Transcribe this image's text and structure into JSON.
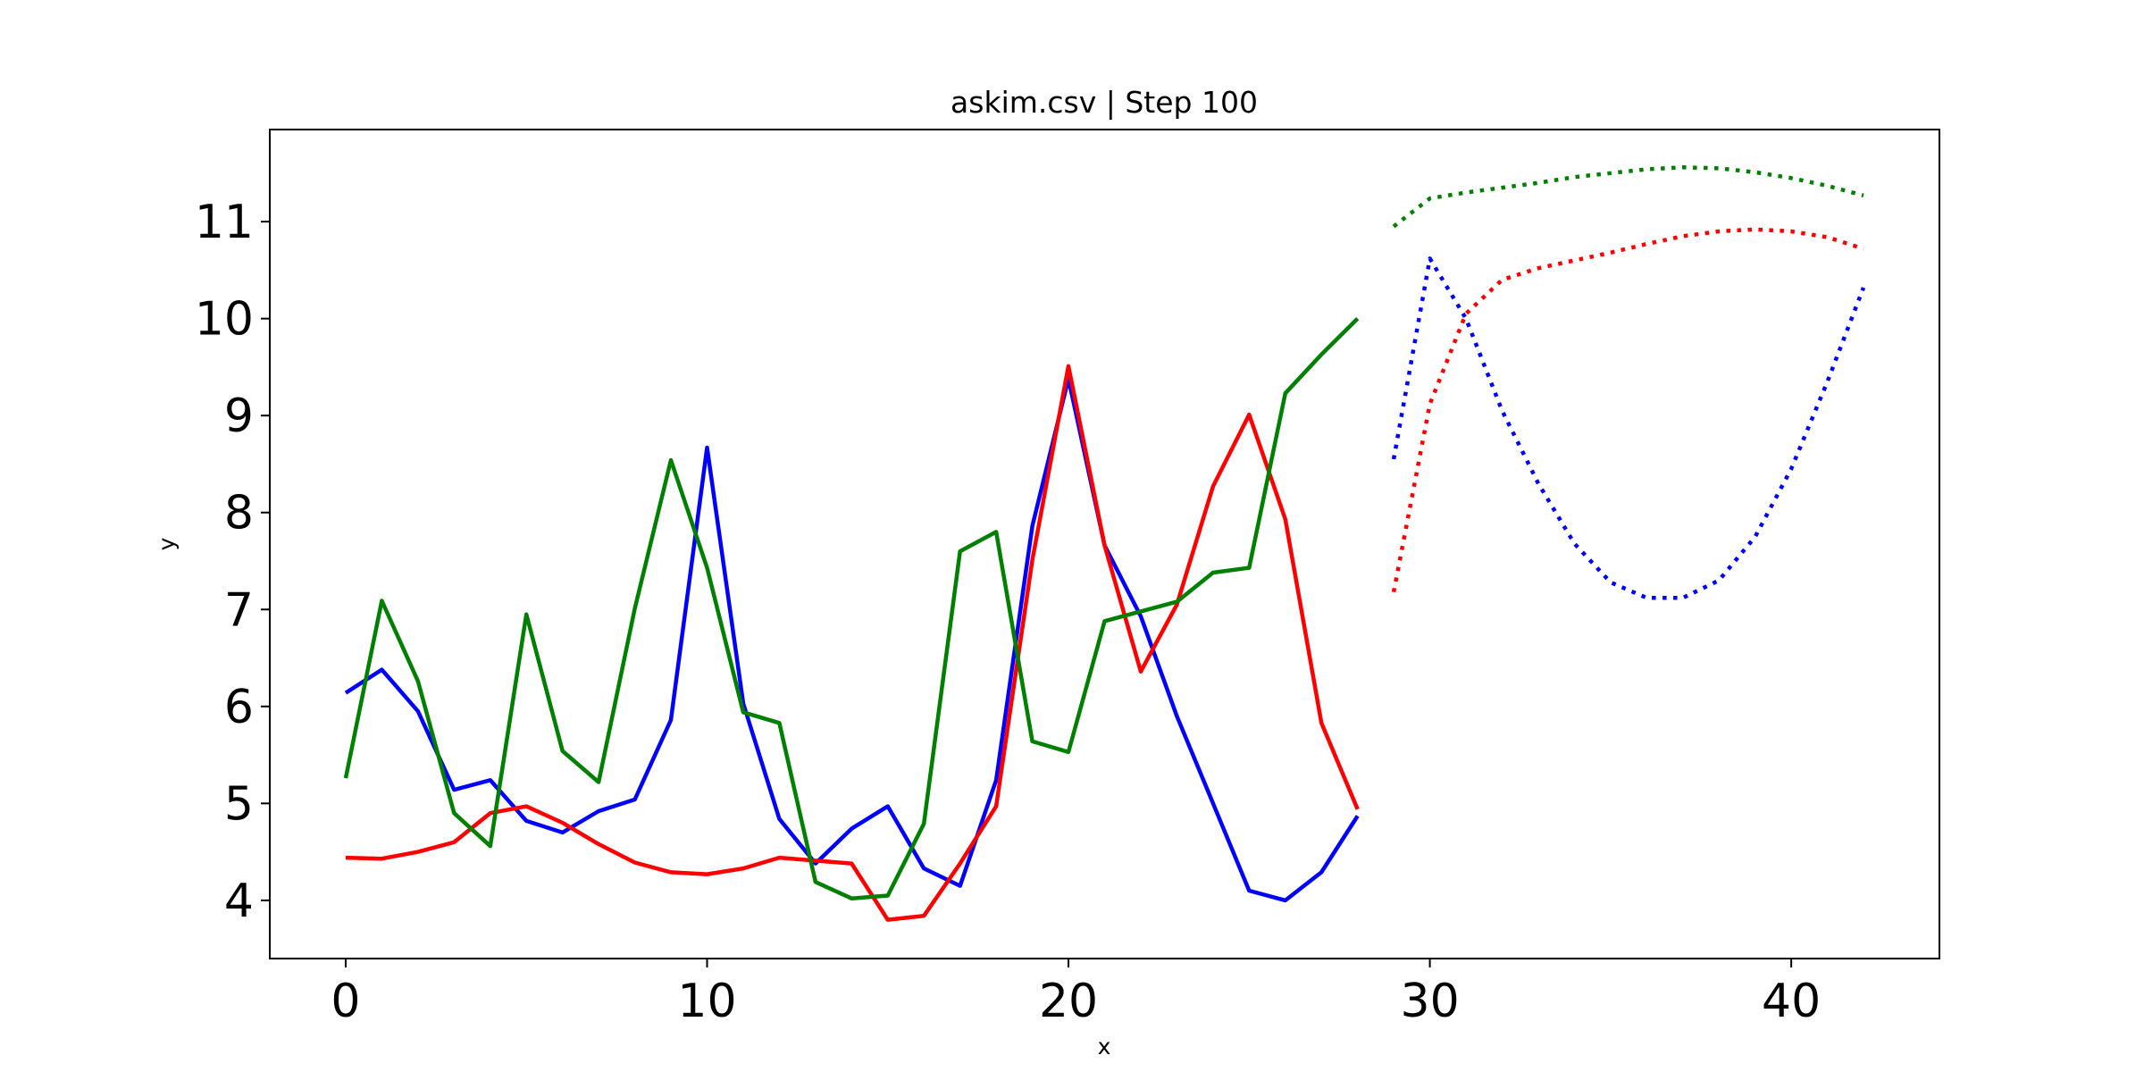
{
  "chart_data": {
    "type": "line",
    "title": "askim.csv | Step 100",
    "xlabel": "x",
    "ylabel": "y",
    "xlim": [
      -2.1,
      44.1
    ],
    "ylim": [
      3.4,
      11.95
    ],
    "x_ticks": [
      0,
      10,
      20,
      30,
      40
    ],
    "y_ticks": [
      4,
      5,
      6,
      7,
      8,
      9,
      10,
      11
    ],
    "grid": false,
    "legend": "none",
    "series": [
      {
        "color": "#0000ff",
        "style": "solid",
        "x": [
          0,
          1,
          2,
          3,
          4,
          5,
          6,
          7,
          8,
          9,
          10,
          11,
          12,
          13,
          14,
          15,
          16,
          17,
          18,
          19,
          20,
          21,
          22,
          23,
          24,
          25,
          26,
          27,
          28
        ],
        "values": [
          6.14,
          6.38,
          5.95,
          5.14,
          5.24,
          4.82,
          4.7,
          4.92,
          5.04,
          5.86,
          8.67,
          6.03,
          4.84,
          4.38,
          4.74,
          4.97,
          4.33,
          4.15,
          5.24,
          7.86,
          9.38,
          7.66,
          6.93,
          5.9,
          5.0,
          4.1,
          4.0,
          4.29,
          4.87
        ]
      },
      {
        "color": "#ff0000",
        "style": "solid",
        "x": [
          0,
          1,
          2,
          3,
          4,
          5,
          6,
          7,
          8,
          9,
          10,
          11,
          12,
          13,
          14,
          15,
          16,
          17,
          18,
          19,
          20,
          21,
          22,
          23,
          24,
          25,
          26,
          27,
          28
        ],
        "values": [
          4.44,
          4.43,
          4.5,
          4.6,
          4.9,
          4.97,
          4.8,
          4.58,
          4.39,
          4.29,
          4.27,
          4.33,
          4.44,
          4.41,
          4.38,
          3.8,
          3.84,
          4.38,
          4.97,
          7.51,
          9.51,
          7.66,
          6.36,
          7.05,
          8.27,
          9.01,
          7.93,
          5.83,
          4.94
        ]
      },
      {
        "color": "#008000",
        "style": "solid",
        "x": [
          0,
          1,
          2,
          3,
          4,
          5,
          6,
          7,
          8,
          9,
          10,
          11,
          12,
          13,
          14,
          15,
          16,
          17,
          18,
          19,
          20,
          21,
          22,
          23,
          24,
          25,
          26,
          27,
          28
        ],
        "values": [
          5.26,
          7.09,
          6.26,
          4.9,
          4.56,
          6.95,
          5.54,
          5.22,
          7.01,
          8.54,
          7.43,
          5.94,
          5.83,
          4.19,
          4.02,
          4.05,
          4.79,
          7.6,
          7.8,
          5.64,
          5.53,
          6.88,
          6.98,
          7.08,
          7.38,
          7.43,
          9.23,
          9.63,
          10.0
        ]
      },
      {
        "color": "#0000ff",
        "style": "dotted",
        "x": [
          29,
          30,
          31,
          32,
          33,
          34,
          35,
          36,
          37,
          38,
          39,
          40,
          41,
          42
        ],
        "values": [
          8.55,
          10.62,
          10.0,
          9.05,
          8.3,
          7.68,
          7.28,
          7.12,
          7.12,
          7.3,
          7.75,
          8.45,
          9.35,
          10.32
        ]
      },
      {
        "color": "#ff0000",
        "style": "dotted",
        "x": [
          29,
          30,
          31,
          32,
          33,
          34,
          35,
          36,
          37,
          38,
          39,
          40,
          41,
          42
        ],
        "values": [
          7.18,
          9.12,
          10.05,
          10.4,
          10.52,
          10.6,
          10.68,
          10.77,
          10.85,
          10.9,
          10.92,
          10.9,
          10.84,
          10.72
        ]
      },
      {
        "color": "#008000",
        "style": "dotted",
        "x": [
          29,
          30,
          31,
          32,
          33,
          34,
          35,
          36,
          37,
          38,
          39,
          40,
          41,
          42
        ],
        "values": [
          10.95,
          11.24,
          11.3,
          11.35,
          11.4,
          11.46,
          11.5,
          11.54,
          11.56,
          11.55,
          11.51,
          11.45,
          11.37,
          11.27
        ]
      }
    ]
  }
}
